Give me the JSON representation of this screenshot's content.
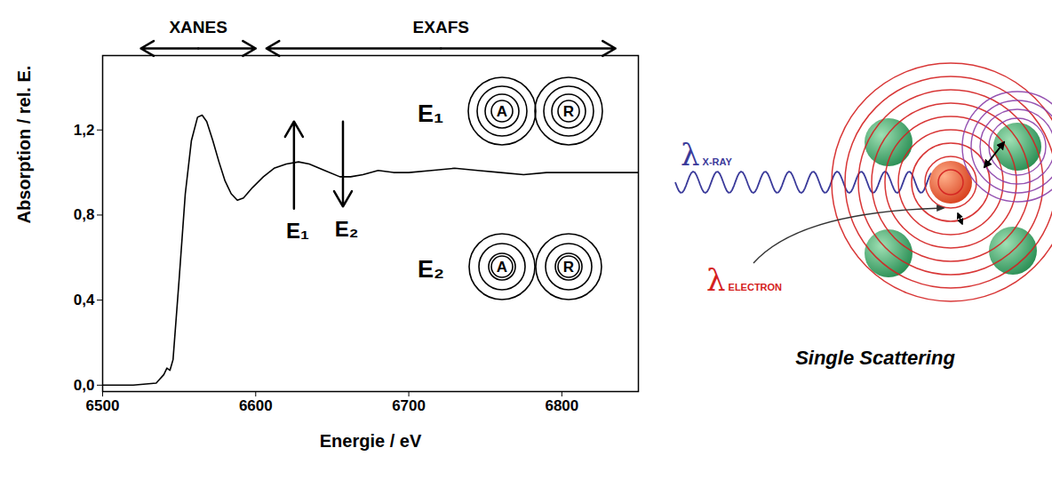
{
  "chart_data": {
    "type": "line",
    "x_label": "Energie / eV",
    "y_label": "Absorption / rel. E.",
    "x": [
      6500,
      6520,
      6535,
      6540,
      6542,
      6544,
      6546,
      6550,
      6554,
      6558,
      6562,
      6565,
      6568,
      6572,
      6576,
      6580,
      6584,
      6588,
      6592,
      6598,
      6605,
      6612,
      6620,
      6628,
      6635,
      6645,
      6655,
      6662,
      6670,
      6680,
      6690,
      6700,
      6715,
      6730,
      6745,
      6760,
      6775,
      6790,
      6810,
      6830,
      6850
    ],
    "values": [
      0.0,
      0.0,
      0.01,
      0.05,
      0.08,
      0.07,
      0.12,
      0.5,
      0.9,
      1.15,
      1.26,
      1.27,
      1.24,
      1.15,
      1.05,
      0.96,
      0.9,
      0.87,
      0.88,
      0.93,
      0.98,
      1.02,
      1.04,
      1.05,
      1.04,
      1.01,
      0.98,
      0.98,
      0.99,
      1.01,
      1.0,
      1.0,
      1.01,
      1.02,
      1.01,
      1.0,
      0.99,
      1.0,
      1.0,
      1.0,
      1.0
    ],
    "color": "#000000",
    "xlim": [
      6500,
      6850
    ],
    "ylim": [
      -0.03,
      1.55
    ],
    "xticks": [
      6500,
      6600,
      6700,
      6800
    ],
    "yticks": [
      {
        "value": 0,
        "label": "0,0"
      },
      {
        "value": 0.4,
        "label": "0,4"
      },
      {
        "value": 0.8,
        "label": "0,8"
      },
      {
        "value": 1.2,
        "label": "1,2"
      }
    ],
    "regions": [
      {
        "label": "XANES",
        "x": [
          6525,
          6600
        ]
      },
      {
        "label": "EXAFS",
        "x": [
          6607,
          6835
        ]
      }
    ],
    "energy_markers": [
      {
        "label": "E₁",
        "x": 6625,
        "y": [
          0.83,
          1.24
        ]
      },
      {
        "label": "E₂",
        "x": 6657,
        "y": [
          1.24,
          0.84
        ]
      }
    ],
    "scattering_insets": [
      {
        "label": "E₁",
        "atoms": [
          "A",
          "R"
        ]
      },
      {
        "label": "E₂",
        "atoms": [
          "A",
          "R"
        ]
      }
    ]
  },
  "diagram": {
    "xray_label": {
      "symbol": "λ",
      "subscript": "X-RAY"
    },
    "electron_label": {
      "symbol": "λ",
      "subscript": "ELECTRON"
    },
    "caption": "Single Scattering"
  }
}
